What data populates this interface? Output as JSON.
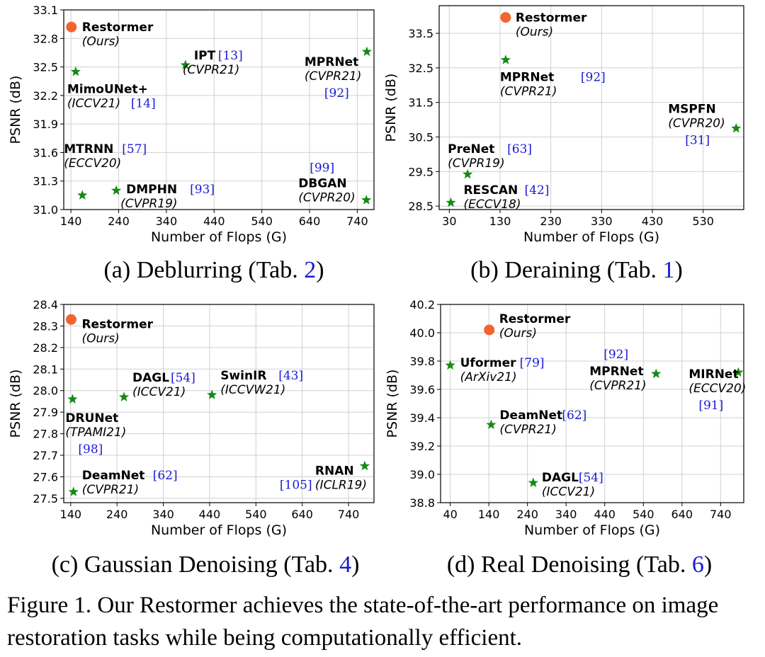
{
  "caption": "Figure 1. Our Restormer achieves the state-of-the-art performance on image restoration tasks while being computationally efficient.",
  "colors": {
    "restormer": "#f26430",
    "others": "#158a15",
    "ref": "#1a1ad6",
    "grid": "#d0d0d0"
  },
  "chart_data": [
    {
      "id": "a",
      "type": "scatter",
      "subcaption": {
        "prefix": "(a) Deblurring (Tab. ",
        "ref": "2",
        "suffix": ")"
      },
      "xlabel": "Number of Flops (G)",
      "ylabel": "PSNR (dB)",
      "xlim": [
        125,
        775
      ],
      "ylim": [
        31.0,
        33.1
      ],
      "xticks": [
        140,
        240,
        340,
        440,
        540,
        640,
        740
      ],
      "yticks": [
        "31.0",
        "31.3",
        "31.6",
        "31.9",
        "32.2",
        "32.5",
        "32.8",
        "33.1"
      ],
      "grid": true,
      "points": [
        {
          "name": "Restormer",
          "venue": "(Ours)",
          "ref": "",
          "x": 141,
          "y": 32.92,
          "marker": "circle"
        },
        {
          "name": "MimoUNet+",
          "venue": "(ICCV21)",
          "ref": "[14]",
          "x": 150,
          "y": 32.45,
          "marker": "star"
        },
        {
          "name": "IPT",
          "venue": "(CVPR21)",
          "ref": "[13]",
          "x": 380,
          "y": 32.52,
          "marker": "star"
        },
        {
          "name": "MPRNet",
          "venue": "(CVPR21)",
          "ref": "[92]",
          "x": 760,
          "y": 32.66,
          "marker": "star"
        },
        {
          "name": "MTRNN",
          "venue": "(ECCV20)",
          "ref": "[57]",
          "x": 164,
          "y": 31.15,
          "marker": "star"
        },
        {
          "name": "DMPHN",
          "venue": "(CVPR19)",
          "ref": "[93]",
          "x": 235,
          "y": 31.2,
          "marker": "star"
        },
        {
          "name": "DBGAN",
          "venue": "(CVPR20)",
          "ref": "[99]",
          "x": 759,
          "y": 31.1,
          "marker": "star"
        }
      ]
    },
    {
      "id": "b",
      "type": "scatter",
      "subcaption": {
        "prefix": "(b) Deraining (Tab. ",
        "ref": "1",
        "suffix": ")"
      },
      "xlabel": "Number of Flops (G)",
      "ylabel": "PSNR (dB)",
      "xlim": [
        10,
        610
      ],
      "ylim": [
        28.4,
        34.3
      ],
      "xticks": [
        30,
        130,
        230,
        330,
        430,
        530
      ],
      "yticks": [
        "28.5",
        "29.5",
        "30.5",
        "31.5",
        "32.5",
        "33.5"
      ],
      "grid": true,
      "points": [
        {
          "name": "Restormer",
          "venue": "(Ours)",
          "ref": "",
          "x": 141,
          "y": 33.96,
          "marker": "circle"
        },
        {
          "name": "MPRNet",
          "venue": "(CVPR21)",
          "ref": "[92]",
          "x": 141,
          "y": 32.73,
          "marker": "star"
        },
        {
          "name": "MSPFN",
          "venue": "(CVPR20)",
          "ref": "[31]",
          "x": 595,
          "y": 30.75,
          "marker": "star"
        },
        {
          "name": "PreNet",
          "venue": "(CVPR19)",
          "ref": "[63]",
          "x": 66,
          "y": 29.42,
          "marker": "star"
        },
        {
          "name": "RESCAN",
          "venue": "(ECCV18)",
          "ref": "[42]",
          "x": 33,
          "y": 28.6,
          "marker": "star"
        }
      ]
    },
    {
      "id": "c",
      "type": "scatter",
      "subcaption": {
        "prefix": "(c) Gaussian Denoising (Tab. ",
        "ref": "4",
        "suffix": ")"
      },
      "xlabel": "Number of Flops (G)",
      "ylabel": "PSNR (dB)",
      "xlim": [
        125,
        795
      ],
      "ylim": [
        27.48,
        28.4
      ],
      "xticks": [
        140,
        240,
        340,
        440,
        540,
        640,
        740
      ],
      "yticks": [
        "27.5",
        "27.6",
        "27.7",
        "27.8",
        "27.9",
        "28.0",
        "28.1",
        "28.2",
        "28.3",
        "28.4"
      ],
      "grid": true,
      "points": [
        {
          "name": "Restormer",
          "venue": "(Ours)",
          "ref": "",
          "x": 141,
          "y": 28.33,
          "marker": "circle"
        },
        {
          "name": "DAGL",
          "venue": "(ICCV21)",
          "ref": "[54]",
          "x": 255,
          "y": 27.97,
          "marker": "star"
        },
        {
          "name": "SwinIR",
          "venue": "(ICCVW21)",
          "ref": "[43]",
          "x": 445,
          "y": 27.98,
          "marker": "star"
        },
        {
          "name": "DRUNet",
          "venue": "(TPAMI21)",
          "ref": "[98]",
          "x": 144,
          "y": 27.96,
          "marker": "star"
        },
        {
          "name": "DeamNet",
          "venue": "(CVPR21)",
          "ref": "[62]",
          "x": 146,
          "y": 27.53,
          "marker": "star"
        },
        {
          "name": "RNAN",
          "venue": "(ICLR19)",
          "ref": "[105]",
          "x": 775,
          "y": 27.65,
          "marker": "star"
        }
      ]
    },
    {
      "id": "d",
      "type": "scatter",
      "subcaption": {
        "prefix": "(d) Real Denoising (Tab. ",
        "ref": "6",
        "suffix": ")"
      },
      "xlabel": "Number of Flops (G)",
      "ylabel": "PSNR (dB)",
      "xlim": [
        15,
        800
      ],
      "ylim": [
        38.8,
        40.2
      ],
      "xticks": [
        40,
        140,
        240,
        340,
        440,
        540,
        640,
        740
      ],
      "yticks": [
        "38.8",
        "39.0",
        "39.2",
        "39.4",
        "39.6",
        "39.8",
        "40.0",
        "40.2"
      ],
      "grid": true,
      "points": [
        {
          "name": "Restormer",
          "venue": "(Ours)",
          "ref": "",
          "x": 141,
          "y": 40.02,
          "marker": "circle"
        },
        {
          "name": "Uformer",
          "venue": "(ArXiv21)",
          "ref": "[79]",
          "x": 40,
          "y": 39.77,
          "marker": "star"
        },
        {
          "name": "MPRNet",
          "venue": "(CVPR21)",
          "ref": "[92]",
          "x": 573,
          "y": 39.71,
          "marker": "star"
        },
        {
          "name": "MIRNet",
          "venue": "(ECCV20)",
          "ref": "[91]",
          "x": 786,
          "y": 39.72,
          "marker": "star"
        },
        {
          "name": "DeamNet",
          "venue": "(CVPR21)",
          "ref": "[62]",
          "x": 146,
          "y": 39.35,
          "marker": "star"
        },
        {
          "name": "DAGL",
          "venue": "(ICCV21)",
          "ref": "[54]",
          "x": 255,
          "y": 38.94,
          "marker": "star"
        }
      ]
    }
  ]
}
